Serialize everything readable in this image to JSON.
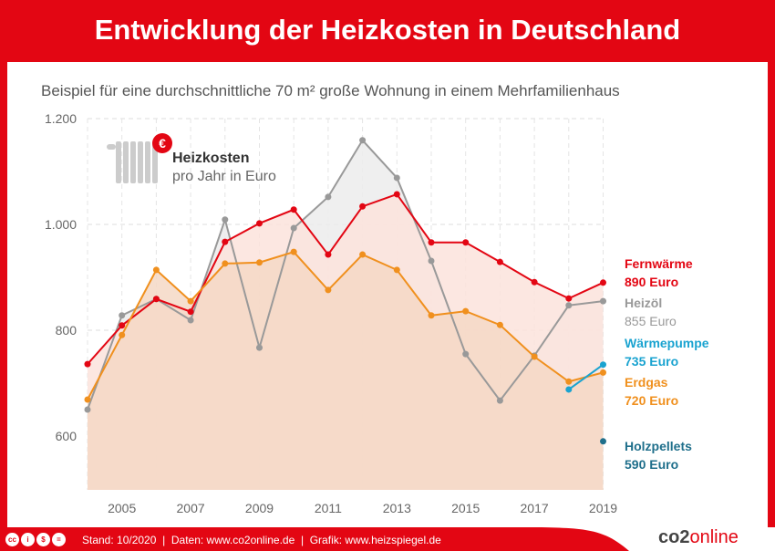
{
  "title": "Entwicklung der Heizkosten in Deutschland",
  "subtitle": "Beispiel für eine durchschnittliche 70 m² große Wohnung in einem Mehrfamilienhaus",
  "legend": {
    "title": "Heizkosten",
    "subtitle": "pro Jahr in Euro",
    "icon": "radiator-euro-icon"
  },
  "footer": {
    "text": "Stand: 10/2020  |  Daten: www.co2online.de  |  Grafik: www.heizspiegel.de",
    "brand_a": "co2",
    "brand_b": "online",
    "license_icons": [
      "cc",
      "by",
      "nc",
      "nd"
    ]
  },
  "chart_data": {
    "type": "area",
    "ylim": [
      500,
      1200
    ],
    "yticks": [
      600,
      800,
      1000,
      1200
    ],
    "ytick_labels": [
      "600",
      "800",
      "1.000",
      "1.200"
    ],
    "xlim": [
      2004,
      2019
    ],
    "xticks": [
      2005,
      2007,
      2009,
      2011,
      2013,
      2015,
      2017,
      2019
    ],
    "grid": true,
    "series": [
      {
        "name": "Heizöl",
        "end_label": "855 Euro",
        "color": "#999999",
        "fill": "#ececec",
        "x": [
          2004,
          2005,
          2006,
          2007,
          2008,
          2009,
          2010,
          2011,
          2012,
          2013,
          2014,
          2015,
          2016,
          2017,
          2018,
          2019
        ],
        "values": [
          650,
          828,
          859,
          819,
          1009,
          767,
          993,
          1052,
          1159,
          1088,
          931,
          755,
          667,
          752,
          847,
          855
        ]
      },
      {
        "name": "Fernwärme",
        "end_label": "890 Euro",
        "color": "#e30613",
        "fill": "#fbe3dc",
        "x": [
          2004,
          2005,
          2006,
          2007,
          2008,
          2009,
          2010,
          2011,
          2012,
          2013,
          2014,
          2015,
          2016,
          2017,
          2018,
          2019
        ],
        "values": [
          736,
          809,
          859,
          835,
          967,
          1002,
          1028,
          943,
          1034,
          1057,
          966,
          966,
          929,
          891,
          860,
          890
        ]
      },
      {
        "name": "Erdgas",
        "end_label": "720 Euro",
        "color": "#f0901e",
        "fill": "#f4d8c6",
        "x": [
          2004,
          2005,
          2006,
          2007,
          2008,
          2009,
          2010,
          2011,
          2012,
          2013,
          2014,
          2015,
          2016,
          2017,
          2018,
          2019
        ],
        "values": [
          669,
          791,
          914,
          855,
          926,
          928,
          948,
          876,
          943,
          914,
          828,
          836,
          810,
          750,
          703,
          720
        ]
      },
      {
        "name": "Wärmepumpe",
        "end_label": "735 Euro",
        "color": "#1aa3d0",
        "x": [
          2018,
          2019
        ],
        "values": [
          688,
          735
        ]
      },
      {
        "name": "Holzpellets",
        "end_label": "590 Euro",
        "color": "#1f6f8b",
        "x": [
          2019
        ],
        "values": [
          590
        ]
      }
    ]
  }
}
